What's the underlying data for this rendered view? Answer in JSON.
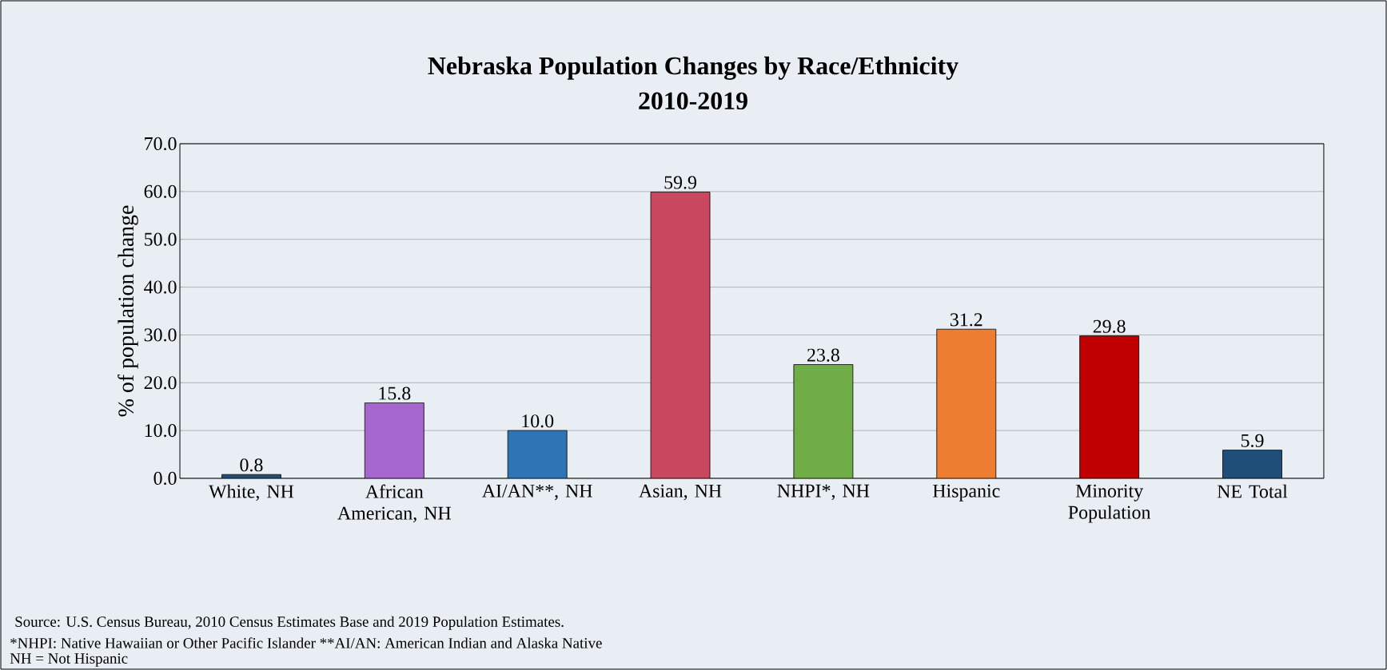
{
  "chart_data": {
    "type": "bar",
    "title": "Nebraska Population Changes by Race/Ethnicity\n2010-2019",
    "ylabel": "% of population change",
    "categories": [
      "White, NH",
      "African American, NH",
      "AI/AN**, NH",
      "Asian, NH",
      "NHPI*, NH",
      "Hispanic",
      "Minority Population",
      "NE Total"
    ],
    "values": [
      0.8,
      15.8,
      10,
      59.9,
      23.8,
      31.2,
      29.8,
      5.9
    ],
    "value_labels": [
      "0.8",
      "15.8",
      "10.0",
      "59.9",
      "23.8",
      "31.2",
      "29.8",
      "5.9"
    ],
    "colors": [
      "#1f4e79",
      "#a566d0",
      "#2e75b6",
      "#c9475f",
      "#70ad47",
      "#ed7d31",
      "#c00000",
      "#1f4e79"
    ],
    "ylim": [
      0,
      70
    ],
    "yticks": [
      {
        "value": 0,
        "label": "0.0"
      },
      {
        "value": 10,
        "label": "10.0"
      },
      {
        "value": 20,
        "label": "20.0"
      },
      {
        "value": 30,
        "label": "30.0"
      },
      {
        "value": 40,
        "label": "40.0"
      },
      {
        "value": 50,
        "label": "50.0"
      },
      {
        "value": 60,
        "label": "60.0"
      },
      {
        "value": 70,
        "label": "70.0"
      }
    ],
    "grid": "y",
    "annotations": [
      "Source: U.S. Census Bureau, 2010 Census Estimates Base and 2019 Population Estimates.",
      "*NHPI: Native Hawaiian or Other Pacific Islander **AI/AN: American Indian and Alaska Native",
      "NH = Not Hispanic"
    ]
  }
}
